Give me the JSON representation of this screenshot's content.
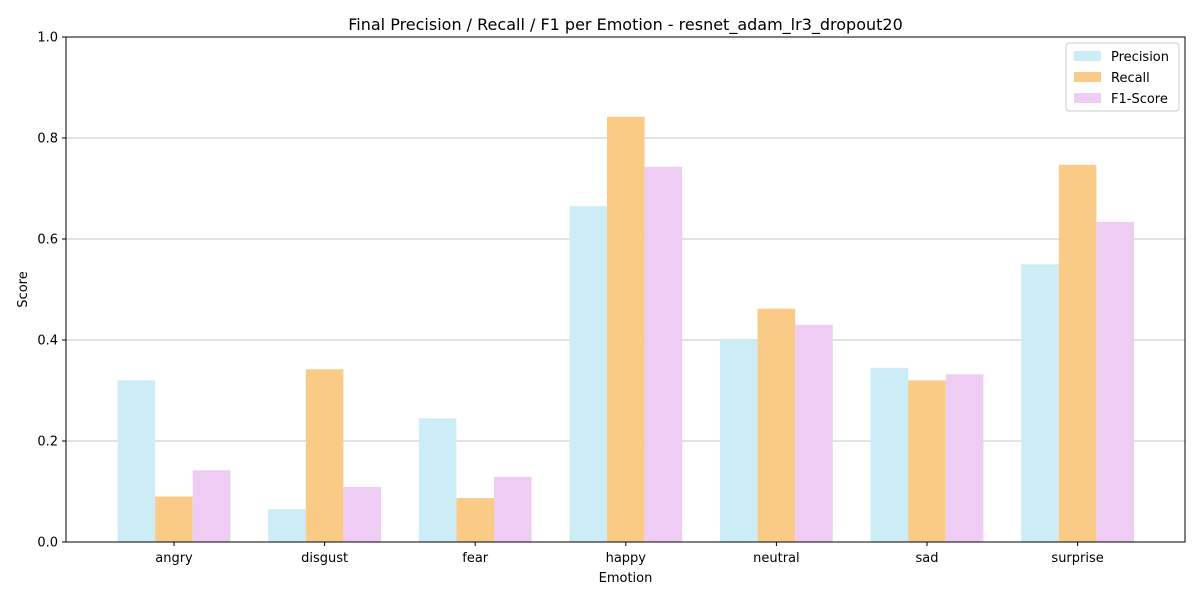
{
  "chart_data": {
    "type": "bar",
    "title": "Final Precision / Recall / F1 per Emotion - resnet_adam_lr3_dropout20",
    "xlabel": "Emotion",
    "ylabel": "Score",
    "ylim": [
      0,
      1.0
    ],
    "yticks": [
      "0.0",
      "0.2",
      "0.4",
      "0.6",
      "0.8",
      "1.0"
    ],
    "grid": "horizontal",
    "legend_position": "top-right",
    "categories": [
      "angry",
      "disgust",
      "fear",
      "happy",
      "neutral",
      "sad",
      "surprise"
    ],
    "series": [
      {
        "name": "Precision",
        "color": "#cdedf6",
        "values": [
          0.32,
          0.065,
          0.245,
          0.665,
          0.4,
          0.345,
          0.55
        ]
      },
      {
        "name": "Recall",
        "color": "#f9cb87",
        "values": [
          0.09,
          0.342,
          0.087,
          0.842,
          0.462,
          0.32,
          0.747
        ]
      },
      {
        "name": "F1-Score",
        "color": "#eeccf3",
        "values": [
          0.142,
          0.109,
          0.129,
          0.743,
          0.43,
          0.332,
          0.634
        ]
      }
    ]
  }
}
